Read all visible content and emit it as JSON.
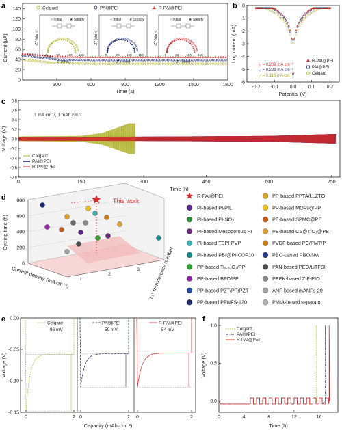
{
  "panels": {
    "a": {
      "letter": "a",
      "legend": [
        "Celgard",
        "PAI@PEI",
        "R-PAI@PEI"
      ],
      "ylabel": "Current (μA)",
      "xlabel": "Time (s)",
      "xticks": [
        "300",
        "600",
        "900",
        "1200",
        "1500",
        "1800"
      ],
      "yticks": [
        "0",
        "20",
        "40",
        "60",
        "80",
        "100",
        "120",
        "140"
      ],
      "inset_legend": [
        "Initial",
        "Steady"
      ],
      "inset_xlabel": "Z' (ohm)",
      "inset_ylabel": "-Z'' (ohm)",
      "inset_xticks": [
        "0",
        "50",
        "100",
        "150"
      ]
    },
    "b": {
      "letter": "b",
      "ylabel": "Log current (mA)",
      "xlabel": "Potential (V)",
      "xticks": [
        "-0.2",
        "-0.1",
        "0.0",
        "0.1",
        "0.2"
      ],
      "yticks": [
        "-6",
        "-5",
        "-4",
        "-3",
        "-2",
        "-1",
        "0"
      ],
      "legend": [
        "R-PAI@PEI",
        "PAI@PEI",
        "Celgard"
      ],
      "i0": [
        "j₀ = 0.208 mA cm⁻²",
        "j₀ = 0.203 mA cm⁻²",
        "j₀ = 0.115 mA cm⁻²"
      ]
    },
    "c": {
      "letter": "c",
      "annotation": "1 mA cm⁻², 1 mAh cm⁻²",
      "ylabel": "Voltage (V)",
      "xlabel": "Time (h)",
      "xticks": [
        "0",
        "150",
        "300",
        "450",
        "600",
        "750"
      ],
      "yticks": [
        "-0.8",
        "-0.6",
        "-0.4",
        "-0.2",
        "0.0",
        "0.2",
        "0.4",
        "0.6",
        "0.8"
      ],
      "legend": [
        "Celgard",
        "PAI@PEI",
        "R-PAI@PEI"
      ]
    },
    "d": {
      "letter": "d",
      "zlabel": "Cycling time (h)",
      "xlabel": "Current density (mA cm⁻²)",
      "ylabel": "Li⁺ transference number",
      "zticks": [
        "0",
        "200",
        "400",
        "600",
        "800"
      ],
      "this_work": "This work",
      "legend_left": [
        "R-PAI@PEI",
        "PI-based PI/PIL",
        "PI-based PI-SO₃",
        "PI-based Mesoporous PI",
        "PI-based TEPI-PVP",
        "PI-based PBI@PI-COF10",
        "PP-based Ti₀.₈₇O₂/PP",
        "PP-based BFO/PP",
        "PP-based PZT/PP/PZT",
        "PP-based PPNFS-120"
      ],
      "legend_right": [
        "PP-based PPTA/LLZTO",
        "PP-based MOFs@PP",
        "PE-based SPMC@PE",
        "PE-based CS@TiO₂@PE",
        "PVDF-based PC/PMT/P",
        "PBO-based PBO/NW",
        "PAN-based PEO/LiTFSI",
        "PEEK-based ZIF-PIO",
        "ANF-based mANFs-20",
        "PMIA-based separator"
      ]
    },
    "e": {
      "letter": "e",
      "ylabel": "Voltage (V)",
      "xlabel": "Capacity (mAh·cm⁻²)",
      "yticks": [
        "0.00",
        "-0.05",
        "-0.10",
        "-0.15"
      ],
      "subs": [
        {
          "name": "Celgard",
          "mv": "96 mV",
          "color": "#b3b733"
        },
        {
          "name": "PAI@PEI",
          "mv": "59 mV",
          "color": "#26337a"
        },
        {
          "name": "R-PAI@PEI",
          "mv": "54 mV",
          "color": "#d43535"
        }
      ],
      "xticks": [
        "0",
        "2"
      ]
    },
    "f": {
      "letter": "f",
      "ylabel": "Voltage (V)",
      "xlabel": "Time (h)",
      "xticks": [
        "0",
        "4",
        "8",
        "12",
        "16"
      ],
      "yticks": [
        "0.0",
        "0.5",
        "1.0"
      ],
      "legend": [
        "Celgard",
        "PAI@PEI",
        "R-PAI@PEI"
      ]
    }
  },
  "colors": {
    "celgard": "#b3b733",
    "pai": "#1c2a70",
    "rpai": "#d42b2b"
  },
  "chart_data": [
    {
      "panel": "a",
      "type": "line",
      "xlabel": "Time (s)",
      "ylabel": "Current (μA)",
      "xlim": [
        0,
        1800
      ],
      "ylim": [
        0,
        150
      ],
      "x": [
        0,
        300,
        600,
        900,
        1200,
        1500,
        1800
      ],
      "series": [
        {
          "name": "Celgard",
          "values": [
            40,
            33,
            32,
            32,
            32,
            32,
            32
          ]
        },
        {
          "name": "PAI@PEI",
          "values": [
            48,
            40,
            39,
            39,
            39,
            39,
            39
          ]
        },
        {
          "name": "R-PAI@PEI",
          "values": [
            52,
            46,
            45,
            45,
            45,
            45,
            45
          ]
        }
      ]
    },
    {
      "panel": "b",
      "type": "scatter",
      "xlabel": "Potential (V)",
      "ylabel": "Log current (mA)",
      "xlim": [
        -0.25,
        0.25
      ],
      "ylim": [
        -6,
        0
      ],
      "series": [
        {
          "name": "R-PAI@PEI",
          "j0": 0.208
        },
        {
          "name": "PAI@PEI",
          "j0": 0.203
        },
        {
          "name": "Celgard",
          "j0": 0.115
        }
      ]
    },
    {
      "panel": "c",
      "type": "line",
      "xlabel": "Time (h)",
      "ylabel": "Voltage (V)",
      "xlim": [
        0,
        770
      ],
      "ylim": [
        -0.8,
        0.8
      ],
      "series": [
        {
          "name": "Celgard",
          "x": [
            0,
            150,
            200,
            265,
            280
          ],
          "amplitude": [
            0.05,
            0.06,
            0.12,
            0.32,
            0.32
          ]
        },
        {
          "name": "PAI@PEI",
          "x": [
            0,
            300,
            600,
            760
          ],
          "amplitude": [
            0.04,
            0.045,
            0.06,
            0.1
          ]
        },
        {
          "name": "R-PAI@PEI",
          "x": [
            0,
            300,
            600,
            760
          ],
          "amplitude": [
            0.04,
            0.045,
            0.06,
            0.1
          ]
        }
      ]
    },
    {
      "panel": "d",
      "type": "scatter",
      "xlabel": "Current density (mA cm⁻²)",
      "ylabel": "Li⁺ transference number",
      "zlabel": "Cycling time (h)",
      "series": [
        {
          "name": "R-PAI@PEI",
          "cycling_time": 760
        }
      ]
    },
    {
      "panel": "e",
      "type": "line",
      "xlabel": "Capacity (mAh·cm⁻²)",
      "ylabel": "Voltage (V)",
      "ylim": [
        -0.15,
        0.0
      ],
      "series": [
        {
          "name": "Celgard",
          "overpotential_mV": 96
        },
        {
          "name": "PAI@PEI",
          "overpotential_mV": 59
        },
        {
          "name": "R-PAI@PEI",
          "overpotential_mV": 54
        }
      ]
    },
    {
      "panel": "f",
      "type": "line",
      "xlabel": "Time (h)",
      "ylabel": "Voltage (V)",
      "xlim": [
        0,
        19
      ],
      "ylim": [
        -0.15,
        1.1
      ],
      "series": [
        {
          "name": "Celgard",
          "short_circuit_h": 15.6
        },
        {
          "name": "PAI@PEI",
          "short_circuit_h": 17.0
        },
        {
          "name": "R-PAI@PEI",
          "short_circuit_h": 17.6
        }
      ]
    }
  ]
}
